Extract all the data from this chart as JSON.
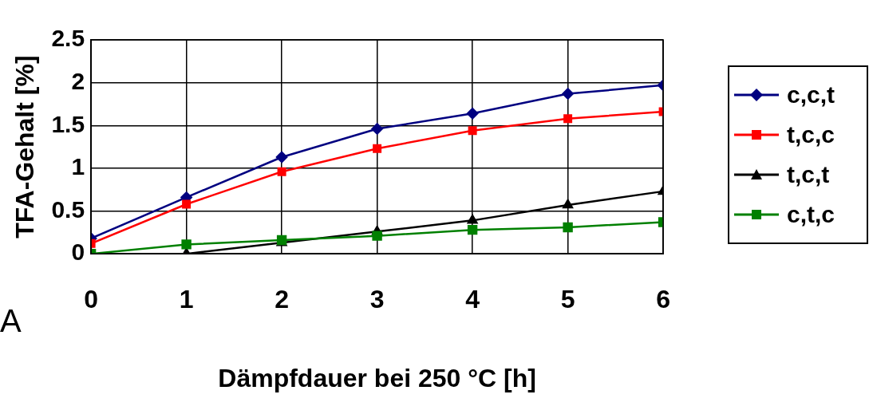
{
  "chart_data": {
    "type": "line",
    "xlabel": "Dämpfdauer bei 250 °C [h]",
    "ylabel": "TFA-Gehalt [%]",
    "x": [
      0,
      1,
      2,
      3,
      4,
      5,
      6
    ],
    "xlim": [
      0,
      6
    ],
    "xticks": [
      0,
      1,
      2,
      3,
      4,
      5,
      6
    ],
    "ylim": [
      0,
      2.5
    ],
    "yticks": [
      0,
      0.5,
      1,
      1.5,
      2,
      2.5
    ],
    "grid": true,
    "legend": "right",
    "line_style": "solid",
    "series": [
      {
        "name": "c,c,t",
        "color": "#000080",
        "marker": "diamond",
        "values": [
          0.18,
          0.66,
          1.13,
          1.46,
          1.64,
          1.87,
          1.97
        ]
      },
      {
        "name": "t,c,c",
        "color": "#ff0000",
        "marker": "square",
        "values": [
          0.12,
          0.58,
          0.96,
          1.23,
          1.44,
          1.58,
          1.66
        ]
      },
      {
        "name": "t,c,t",
        "color": "#000000",
        "marker": "triangle",
        "values": [
          0,
          0,
          0.13,
          0.26,
          0.39,
          0.57,
          0.73
        ]
      },
      {
        "name": "c,t,c",
        "color": "#008000",
        "marker": "square",
        "values": [
          0,
          0.11,
          0.16,
          0.21,
          0.28,
          0.31,
          0.37
        ]
      }
    ],
    "annotations": [
      "A"
    ]
  }
}
